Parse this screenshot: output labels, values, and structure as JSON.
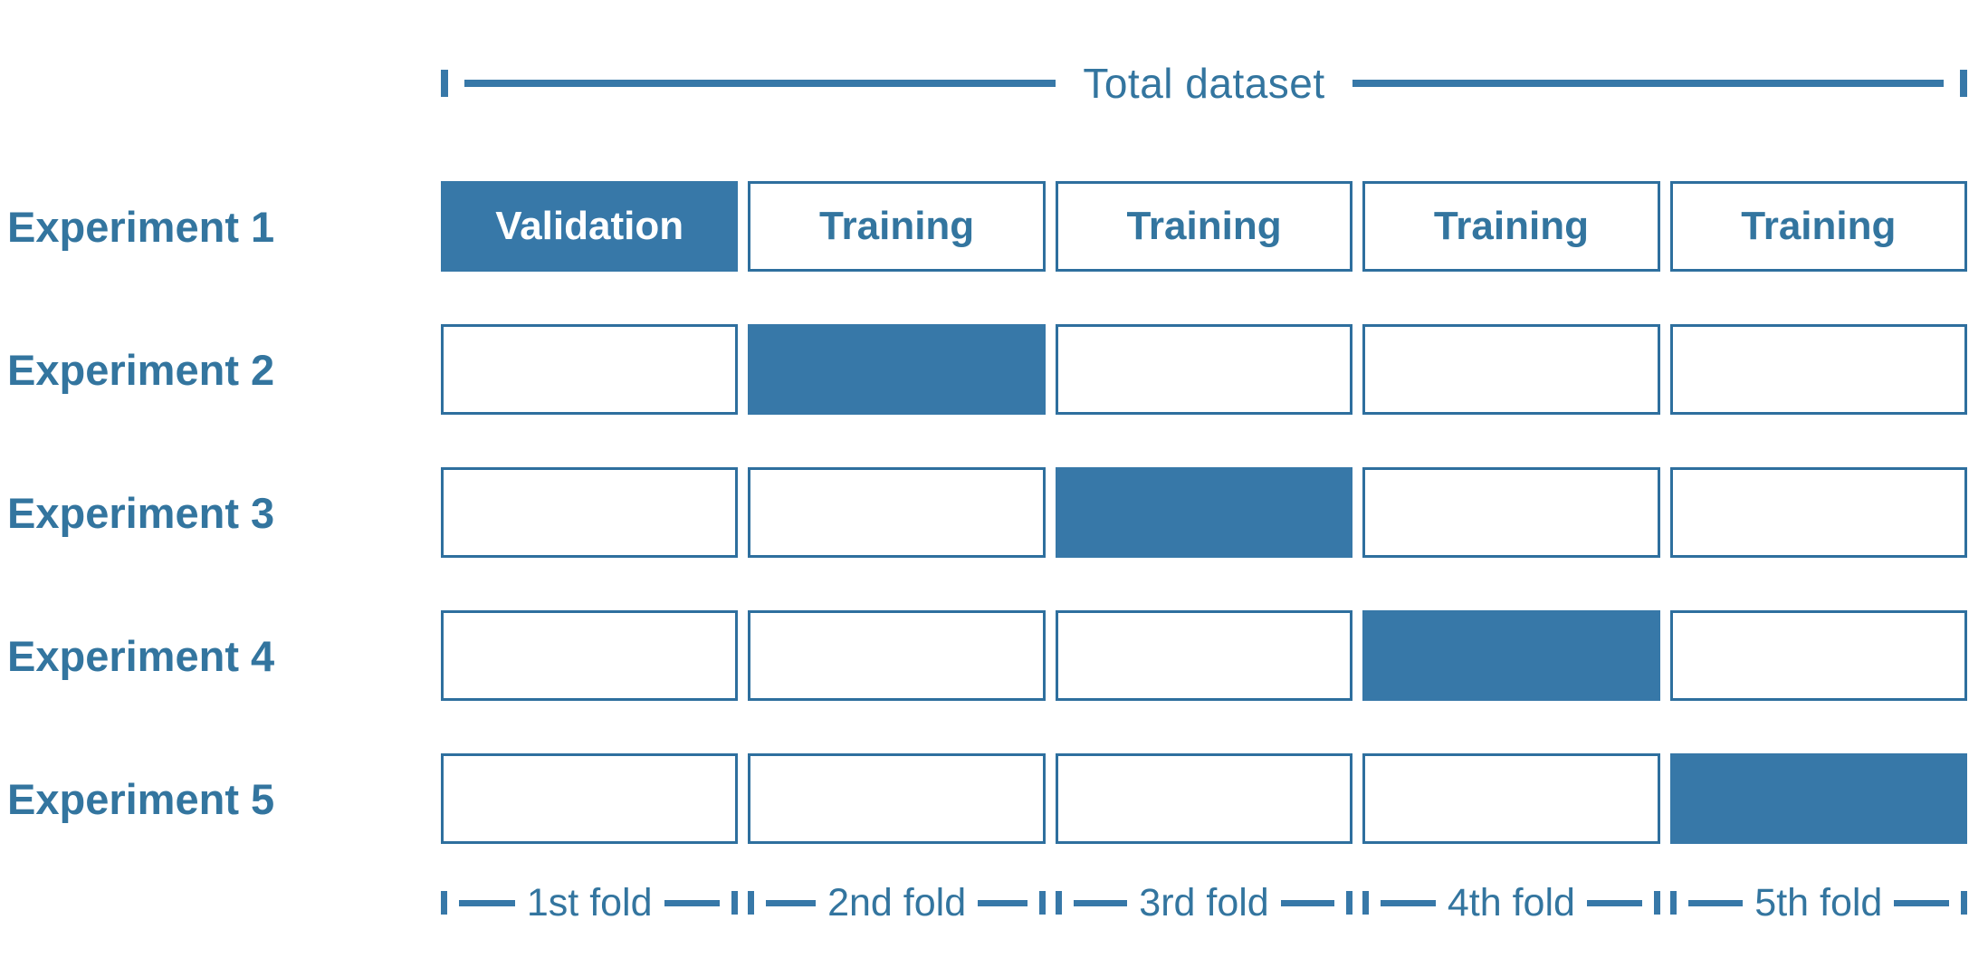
{
  "colors": {
    "accent": "#3778A8",
    "border": "#2E6F9E",
    "text": "#33759F",
    "validation_text": "#FFFFFF",
    "background": "#FFFFFF"
  },
  "title": {
    "label": "Total dataset"
  },
  "rows": [
    {
      "label": "Experiment 1",
      "cells": [
        {
          "text": "Validation",
          "filled": true
        },
        {
          "text": "Training",
          "filled": false
        },
        {
          "text": "Training",
          "filled": false
        },
        {
          "text": "Training",
          "filled": false
        },
        {
          "text": "Training",
          "filled": false
        }
      ]
    },
    {
      "label": "Experiment 2",
      "cells": [
        {
          "text": "",
          "filled": false
        },
        {
          "text": "",
          "filled": true
        },
        {
          "text": "",
          "filled": false
        },
        {
          "text": "",
          "filled": false
        },
        {
          "text": "",
          "filled": false
        }
      ]
    },
    {
      "label": "Experiment 3",
      "cells": [
        {
          "text": "",
          "filled": false
        },
        {
          "text": "",
          "filled": false
        },
        {
          "text": "",
          "filled": true
        },
        {
          "text": "",
          "filled": false
        },
        {
          "text": "",
          "filled": false
        }
      ]
    },
    {
      "label": "Experiment 4",
      "cells": [
        {
          "text": "",
          "filled": false
        },
        {
          "text": "",
          "filled": false
        },
        {
          "text": "",
          "filled": false
        },
        {
          "text": "",
          "filled": true
        },
        {
          "text": "",
          "filled": false
        }
      ]
    },
    {
      "label": "Experiment 5",
      "cells": [
        {
          "text": "",
          "filled": false
        },
        {
          "text": "",
          "filled": false
        },
        {
          "text": "",
          "filled": false
        },
        {
          "text": "",
          "filled": false
        },
        {
          "text": "",
          "filled": true
        }
      ]
    }
  ],
  "folds": [
    {
      "label": "1st fold"
    },
    {
      "label": "2nd fold"
    },
    {
      "label": "3rd fold"
    },
    {
      "label": "4th fold"
    },
    {
      "label": "5th fold"
    }
  ]
}
